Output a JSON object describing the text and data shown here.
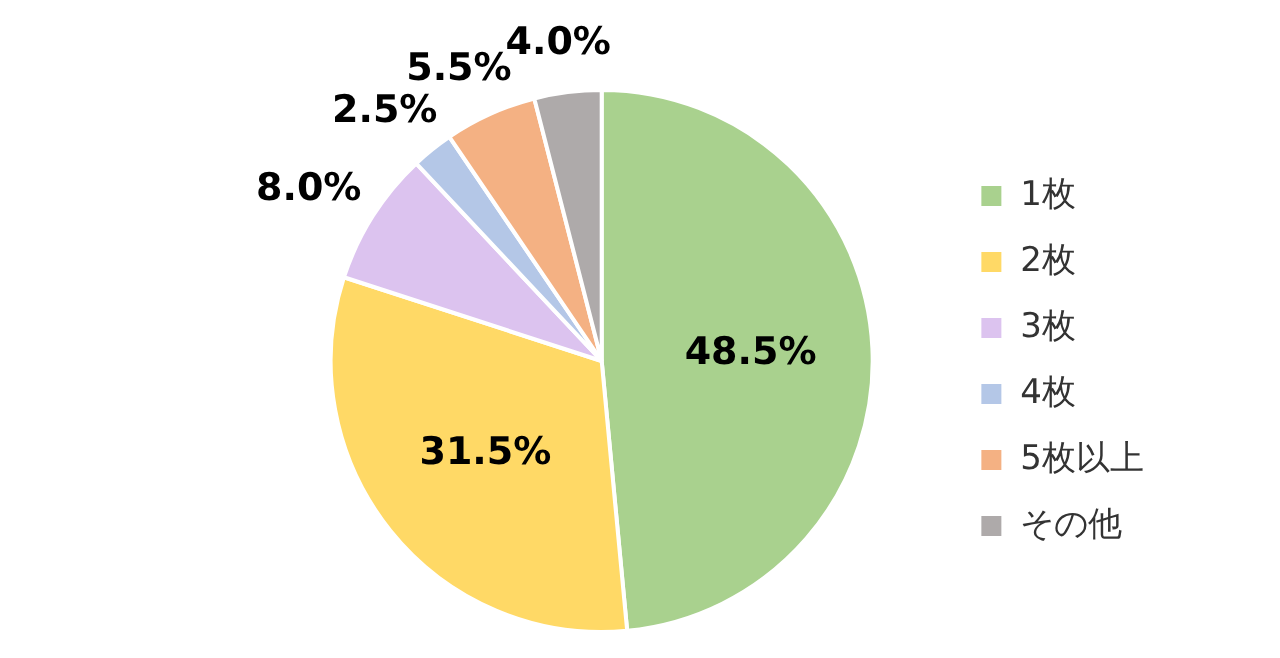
{
  "chart_data": {
    "type": "pie",
    "categories": [
      "1枚",
      "2枚",
      "3枚",
      "4枚",
      "5枚以上",
      "その他"
    ],
    "values": [
      48.5,
      31.5,
      8.0,
      2.5,
      5.5,
      4.0
    ],
    "value_labels": [
      "48.5%",
      "31.5%",
      "8.0%",
      "2.5%",
      "5.5%",
      "4.0%"
    ],
    "colors": [
      "#a9d18e",
      "#ffd966",
      "#dcc3ef",
      "#b4c7e7",
      "#f4b183",
      "#aeaaaa"
    ],
    "legend": "right"
  }
}
